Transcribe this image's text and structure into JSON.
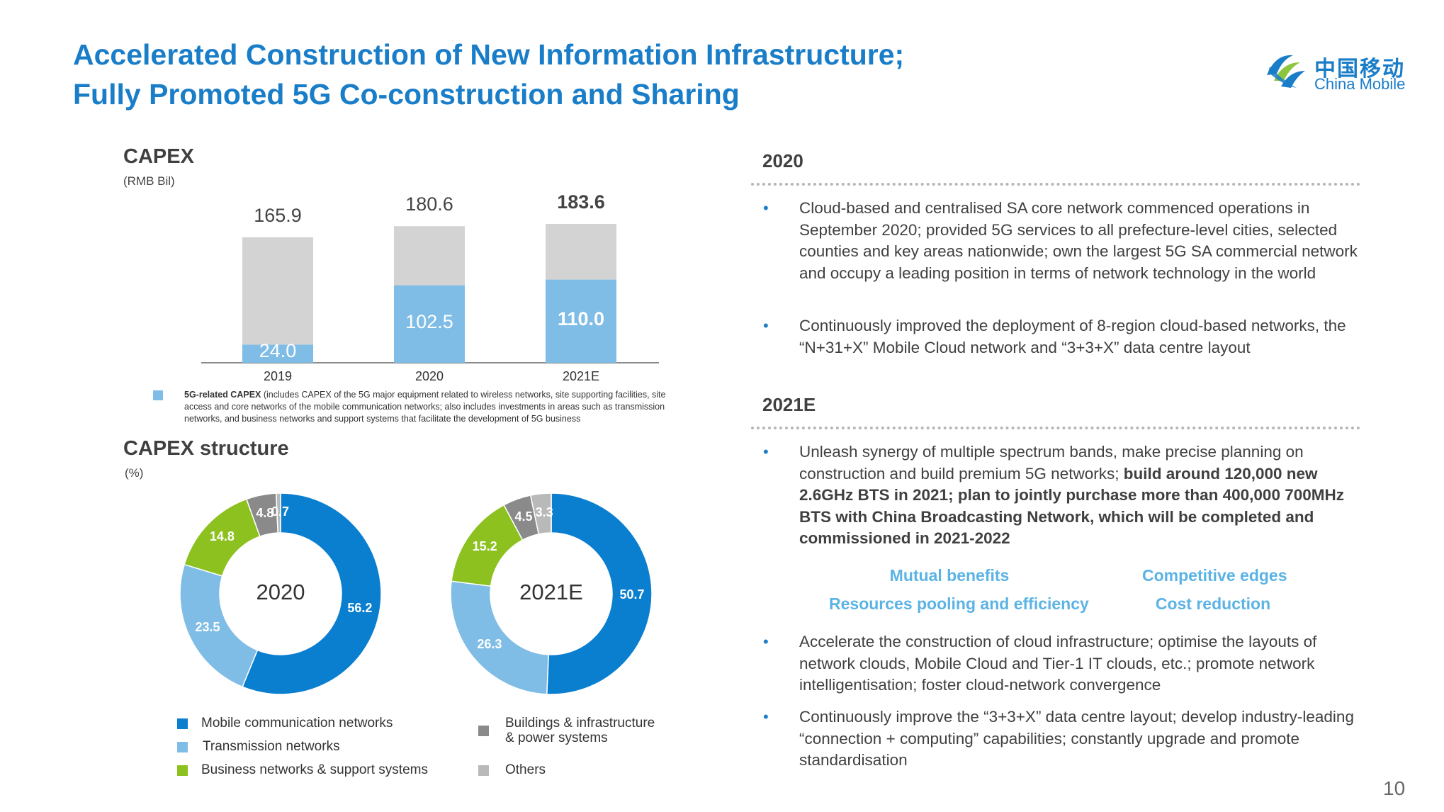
{
  "header": {
    "title_line1": "Accelerated Construction of New Information Infrastructure;",
    "title_line2": "Fully Promoted 5G Co-construction and Sharing"
  },
  "logo": {
    "cn": "中国移动",
    "en": "China Mobile",
    "colors": [
      "#1a7dc8",
      "#8cc63f"
    ]
  },
  "capex": {
    "title": "CAPEX",
    "unit": "(RMB Bil)",
    "footnote_bold": "5G-related CAPEX",
    "footnote_rest": " (includes CAPEX of the 5G major equipment related to wireless networks, site supporting facilities, site access and core networks of the mobile communication networks; also includes investments in areas such as transmission networks, and business networks and support systems that facilitate the development of 5G business"
  },
  "structure": {
    "title": "CAPEX structure",
    "unit": "(%)"
  },
  "chart_data": [
    {
      "type": "bar",
      "stacked": true,
      "categories": [
        "2019",
        "2020",
        "2021E"
      ],
      "totals": [
        "165.9",
        "180.6",
        "183.6"
      ],
      "series": [
        {
          "name": "5G-related CAPEX",
          "values": [
            24.0,
            102.5,
            110.0
          ],
          "labels": [
            "24.0",
            "102.5",
            "110.0"
          ],
          "color": "#7fbde6"
        },
        {
          "values": [
            141.9,
            78.1,
            73.6
          ],
          "color": "#d3d3d3"
        }
      ],
      "ylim": [
        0,
        200
      ]
    },
    {
      "type": "pie",
      "donut": true,
      "center_label": "2020",
      "slices": [
        {
          "name": "Mobile communication networks",
          "value": 56.2,
          "label": "56.2",
          "color": "#0a7ecf"
        },
        {
          "name": "Transmission networks",
          "value": 23.5,
          "label": "23.5",
          "color": "#7fbde6"
        },
        {
          "name": "Business networks & support systems",
          "value": 14.8,
          "label": "14.8",
          "color": "#8cc11f"
        },
        {
          "name": "Buildings & infrastructure & power systems",
          "value": 4.8,
          "label": "4.8",
          "color": "#8a8a8a"
        },
        {
          "name": "Others",
          "value": 0.7,
          "label": "0.7",
          "color": "#b9b9b9"
        }
      ]
    },
    {
      "type": "pie",
      "donut": true,
      "center_label": "2021E",
      "slices": [
        {
          "name": "Mobile communication networks",
          "value": 50.7,
          "label": "50.7",
          "color": "#0a7ecf"
        },
        {
          "name": "Transmission networks",
          "value": 26.3,
          "label": "26.3",
          "color": "#7fbde6"
        },
        {
          "name": "Business networks & support systems",
          "value": 15.2,
          "label": "15.2",
          "color": "#8cc11f"
        },
        {
          "name": "Buildings & infrastructure & power systems",
          "value": 4.5,
          "label": "4.5",
          "color": "#8a8a8a"
        },
        {
          "name": "Others",
          "value": 3.3,
          "label": "3.3",
          "color": "#b9b9b9"
        }
      ]
    }
  ],
  "legend": [
    {
      "label": "Mobile communication networks",
      "color": "#0a7ecf"
    },
    {
      "label": "Transmission networks",
      "color": "#7fbde6"
    },
    {
      "label": "Business networks & support systems",
      "color": "#8cc11f"
    },
    {
      "label": "Buildings & infrastructure\n& power systems",
      "color": "#8a8a8a"
    },
    {
      "label": "Others",
      "color": "#b9b9b9"
    }
  ],
  "right": {
    "year1": "2020",
    "bullets_2020": [
      "Cloud-based and centralised SA core network commenced operations in September 2020; provided 5G services to all prefecture-level cities, selected counties and key areas nationwide; own the largest 5G SA commercial network and occupy a leading position in terms of network technology in the world",
      "Continuously improved the deployment of 8-region cloud-based networks, the “N+31+X” Mobile Cloud network and “3+3+X” data centre layout"
    ],
    "year2": "2021E",
    "bullet_2021_a_plain": "Unleash synergy of multiple spectrum bands, make precise planning on construction and build premium 5G networks; ",
    "bullet_2021_a_bold": "build around 120,000 new 2.6GHz BTS in 2021; plan to jointly purchase more than 400,000 700MHz BTS with China Broadcasting Network, which will be completed and commissioned in 2021-2022",
    "keywords": [
      "Mutual benefits",
      "Competitive edges",
      "Resources pooling and efficiency",
      "Cost reduction"
    ],
    "bullets_2021_rest": [
      "Accelerate the construction of cloud infrastructure; optimise the layouts of network clouds, Mobile Cloud and Tier-1 IT clouds, etc.; promote network intelligentisation; foster cloud-network convergence",
      "Continuously improve the “3+3+X” data centre layout; develop industry-leading “connection + computing” capabilities; constantly upgrade and promote standardisation"
    ],
    "bullet_char": "•"
  },
  "page_number": "10"
}
